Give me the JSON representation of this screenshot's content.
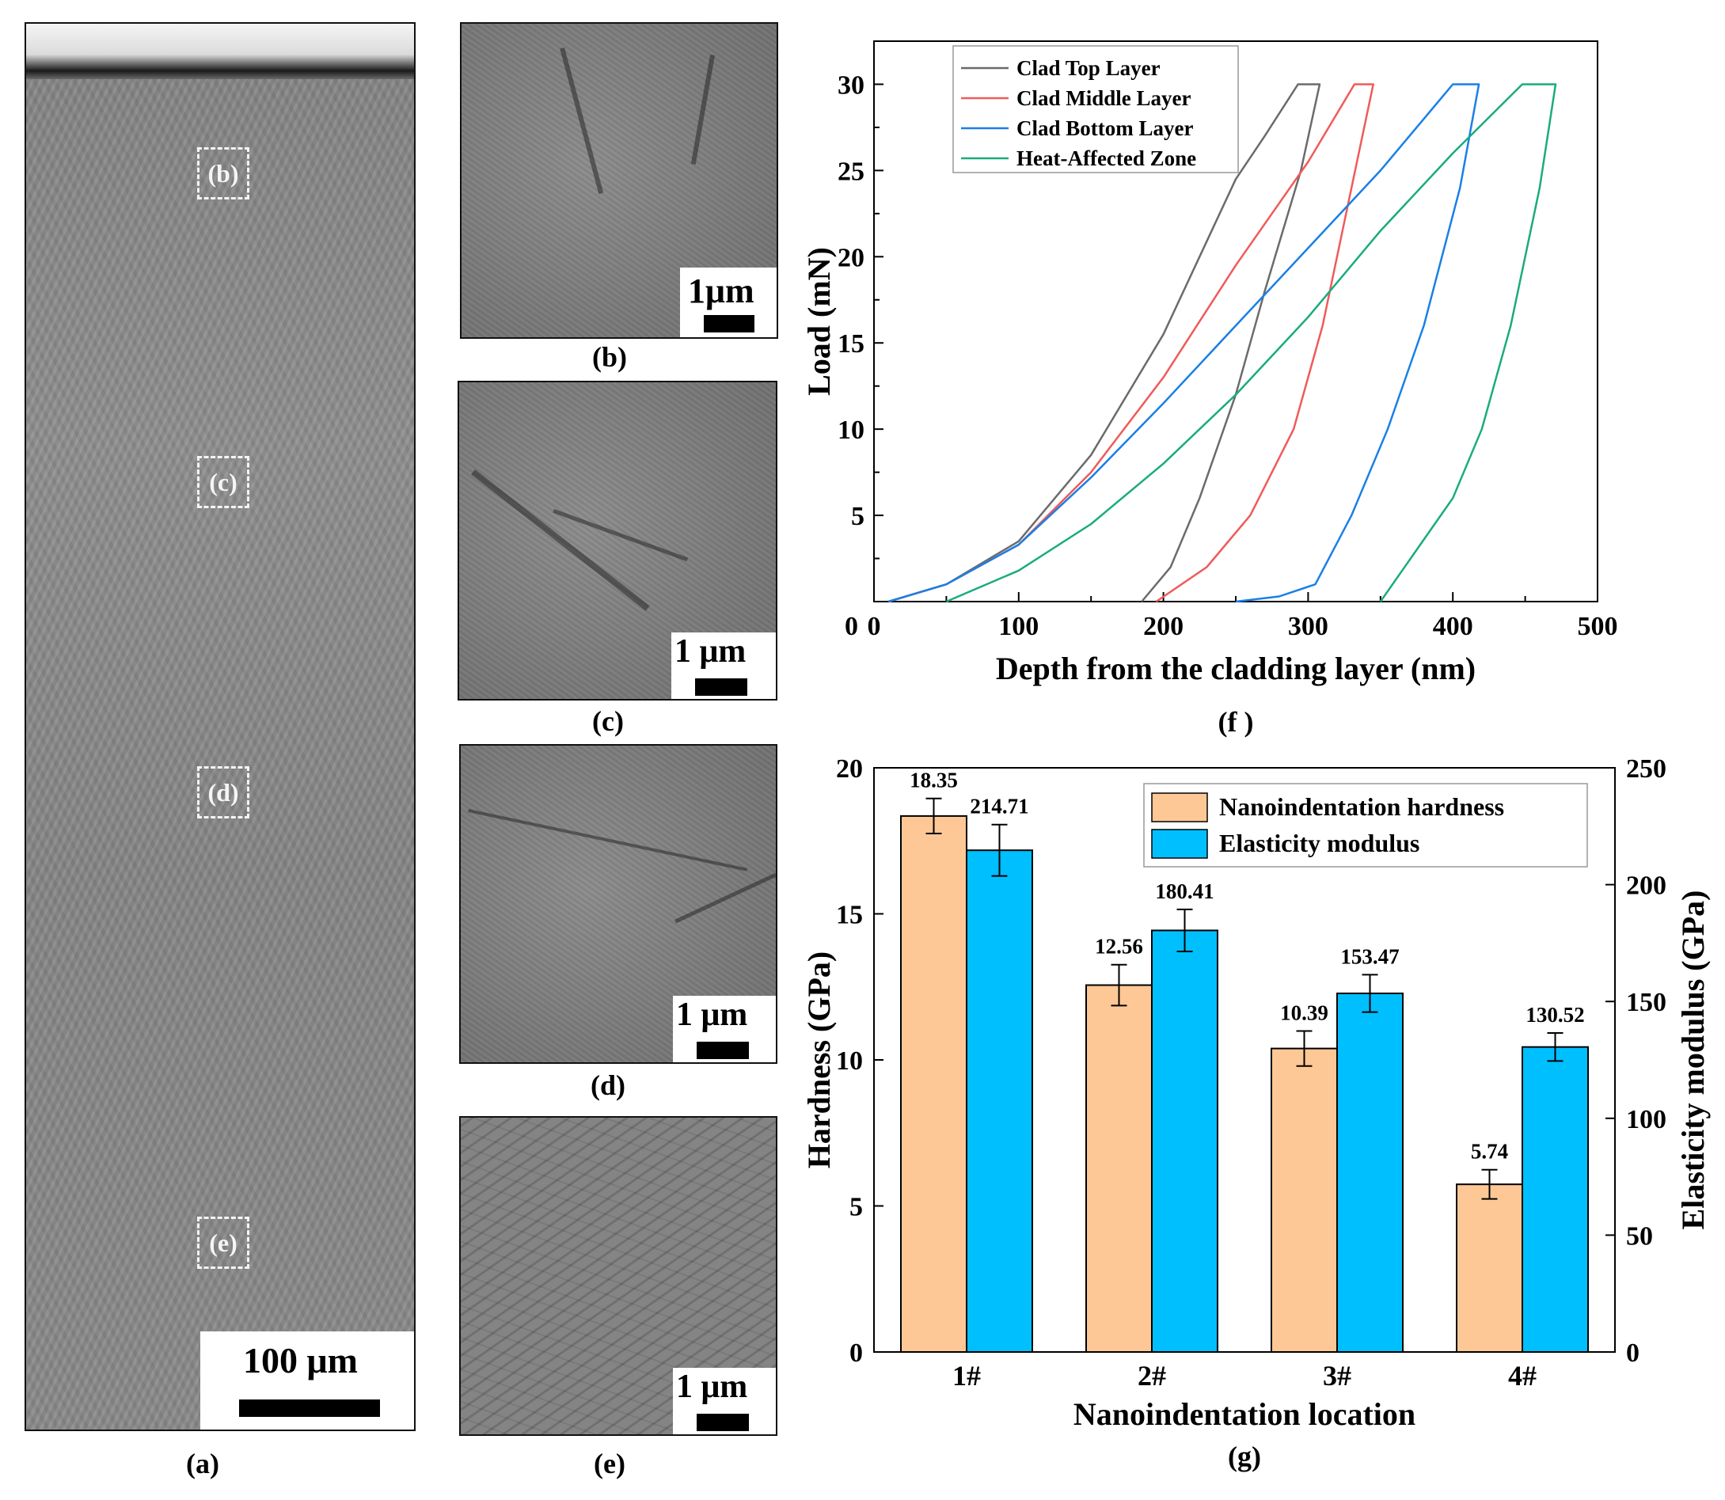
{
  "panels": {
    "a": {
      "caption": "(a)",
      "scale_label": "100 μm",
      "markers": [
        "(b)",
        "(c)",
        "(d)",
        "(e)"
      ]
    },
    "b": {
      "caption": "(b)",
      "scale_label": "1μm"
    },
    "c": {
      "caption": "(c)",
      "scale_label": "1 μm"
    },
    "d": {
      "caption": "(d)",
      "scale_label": "1 μm"
    },
    "e": {
      "caption": "(e)",
      "scale_label": "1 μm"
    },
    "f": {
      "caption": "(f )"
    },
    "g": {
      "caption": "(g)"
    }
  },
  "chart_data": [
    {
      "id": "f",
      "type": "line",
      "xlabel": "Depth from the cladding layer (nm)",
      "ylabel": "Load (mN)",
      "xlim": [
        0,
        500
      ],
      "ylim": [
        0,
        32.5
      ],
      "xticks": [
        0,
        100,
        200,
        300,
        400,
        500
      ],
      "yticks": [
        5,
        10,
        15,
        20,
        25,
        30
      ],
      "legend_position": "top-left",
      "colors": [
        "#6b6b6b",
        "#f05a5a",
        "#1a7fe6",
        "#1aab7f"
      ],
      "series": [
        {
          "name": "Clad Top Layer",
          "loading": [
            [
              10,
              0
            ],
            [
              50,
              1
            ],
            [
              100,
              3.5
            ],
            [
              150,
              8.5
            ],
            [
              200,
              15.5
            ],
            [
              250,
              24.5
            ],
            [
              270,
              27
            ],
            [
              293,
              30
            ]
          ],
          "hold": [
            [
              293,
              30
            ],
            [
              308,
              30
            ]
          ],
          "unloading": [
            [
              308,
              30
            ],
            [
              295,
              25
            ],
            [
              270,
              18
            ],
            [
              250,
              12
            ],
            [
              225,
              6
            ],
            [
              205,
              2
            ],
            [
              185,
              0
            ]
          ]
        },
        {
          "name": "Clad Middle Layer",
          "loading": [
            [
              10,
              0
            ],
            [
              50,
              1
            ],
            [
              100,
              3.3
            ],
            [
              150,
              7.5
            ],
            [
              200,
              13
            ],
            [
              250,
              19.5
            ],
            [
              300,
              25.5
            ],
            [
              332,
              30
            ]
          ],
          "hold": [
            [
              332,
              30
            ],
            [
              345,
              30
            ]
          ],
          "unloading": [
            [
              345,
              30
            ],
            [
              330,
              24
            ],
            [
              310,
              16
            ],
            [
              290,
              10
            ],
            [
              260,
              5
            ],
            [
              230,
              2
            ],
            [
              195,
              0
            ]
          ]
        },
        {
          "name": "Clad Bottom Layer",
          "loading": [
            [
              10,
              0
            ],
            [
              50,
              1
            ],
            [
              100,
              3.3
            ],
            [
              150,
              7.2
            ],
            [
              200,
              11.5
            ],
            [
              250,
              16
            ],
            [
              300,
              20.5
            ],
            [
              350,
              25
            ],
            [
              400,
              30
            ]
          ],
          "hold": [
            [
              400,
              30
            ],
            [
              418,
              30
            ]
          ],
          "unloading": [
            [
              418,
              30
            ],
            [
              405,
              24
            ],
            [
              380,
              16
            ],
            [
              355,
              10
            ],
            [
              330,
              5
            ],
            [
              305,
              1
            ],
            [
              280,
              0.3
            ],
            [
              250,
              0
            ]
          ]
        },
        {
          "name": "Heat-Affected Zone",
          "loading": [
            [
              50,
              0
            ],
            [
              100,
              1.8
            ],
            [
              150,
              4.5
            ],
            [
              200,
              8
            ],
            [
              250,
              12
            ],
            [
              300,
              16.5
            ],
            [
              350,
              21.5
            ],
            [
              400,
              26
            ],
            [
              448,
              30
            ]
          ],
          "hold": [
            [
              448,
              30
            ],
            [
              471,
              30
            ]
          ],
          "unloading": [
            [
              471,
              30
            ],
            [
              460,
              24
            ],
            [
              440,
              16
            ],
            [
              420,
              10
            ],
            [
              400,
              6
            ],
            [
              375,
              3
            ],
            [
              350,
              0
            ]
          ]
        }
      ]
    },
    {
      "id": "g",
      "type": "bar",
      "xlabel": "Nanoindentation location",
      "ylabel": "Hardness (GPa)",
      "y2label": "Elasticity modulus (GPa)",
      "categories": [
        "1#",
        "2#",
        "3#",
        "4#"
      ],
      "ylim": [
        0,
        20
      ],
      "y2lim": [
        0,
        250
      ],
      "yticks": [
        0,
        5,
        10,
        15,
        20
      ],
      "y2ticks": [
        0,
        50,
        100,
        150,
        200,
        250
      ],
      "legend_position": "top-right",
      "series": [
        {
          "name": "Nanoindentation hardness",
          "axis": "left",
          "color": "#fdc896",
          "values": [
            18.35,
            12.56,
            10.39,
            5.74
          ],
          "labels": [
            "18.35",
            "12.56",
            "10.39",
            "5.74"
          ],
          "errors": [
            0.6,
            0.7,
            0.6,
            0.5
          ]
        },
        {
          "name": "Elasticity modulus",
          "axis": "right",
          "color": "#00bfff",
          "values": [
            214.71,
            180.41,
            153.47,
            130.52
          ],
          "labels": [
            "214.71",
            "180.41",
            "153.47",
            "130.52"
          ],
          "errors": [
            11,
            9,
            8,
            6
          ]
        }
      ]
    }
  ]
}
